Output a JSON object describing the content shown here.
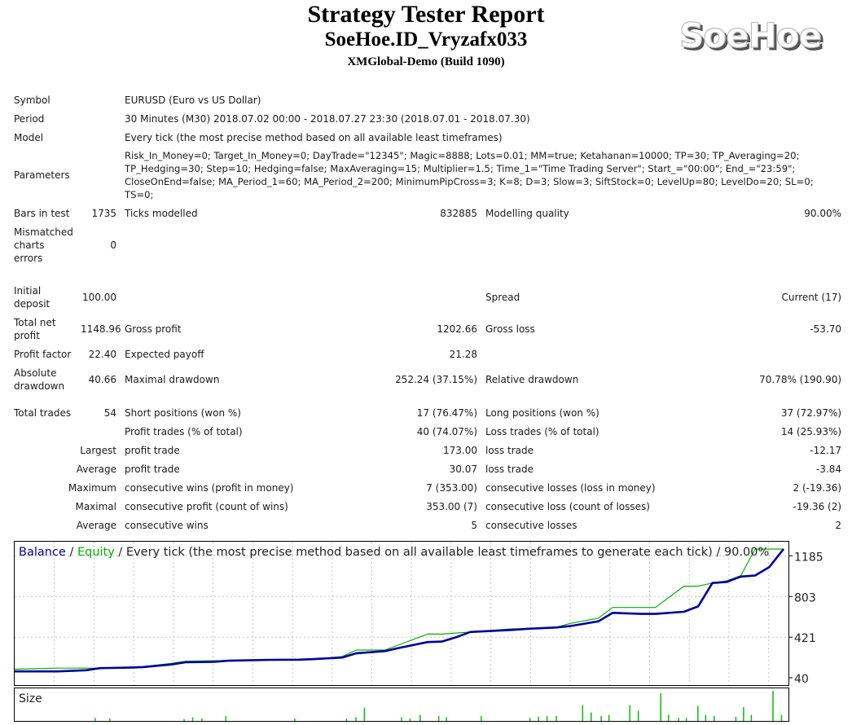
{
  "header": {
    "title": "Strategy Tester Report",
    "expert": "SoeHoe.ID_Vryzafx033",
    "server": "XMGlobal-Demo (Build 1090)",
    "logo_text": "SoeHoe"
  },
  "settings": {
    "symbol_label": "Symbol",
    "symbol_value": "EURUSD (Euro vs US Dollar)",
    "period_label": "Period",
    "period_value": "30 Minutes (M30) 2018.07.02 00:00 - 2018.07.27 23:30 (2018.07.01 - 2018.07.30)",
    "model_label": "Model",
    "model_value": "Every tick (the most precise method based on all available least timeframes)",
    "parameters_label": "Parameters",
    "parameters_value": "Risk_In_Money=0; Target_In_Money=0; DayTrade=\"12345\"; Magic=8888; Lots=0.01; MM=true; Ketahanan=10000; TP=30; TP_Averaging=20; TP_Hedging=30; Step=10; Hedging=false; MaxAveraging=15; Multiplier=1.5; Time_1=\"Time Trading Server\"; Start_=\"00:00\"; End_=\"23:59\"; CloseOnEnd=false; MA_Period_1=60; MA_Period_2=200; MinimumPipCross=3; K=8; D=3; Slow=3; SiftStock=0; LevelUp=80; LevelDo=20; SL=0; TS=0;"
  },
  "stats": {
    "bars_label": "Bars in test",
    "bars_value": "1735",
    "ticks_label": "Ticks modelled",
    "ticks_value": "832885",
    "quality_label": "Modelling quality",
    "quality_value": "90.00%",
    "mismatch_label": "Mismatched charts errors",
    "mismatch_value": "0",
    "deposit_label": "Initial deposit",
    "deposit_value": "100.00",
    "spread_label": "Spread",
    "spread_value": "Current (17)",
    "net_label": "Total net profit",
    "net_value": "1148.96",
    "gross_profit_label": "Gross profit",
    "gross_profit_value": "1202.66",
    "gross_loss_label": "Gross loss",
    "gross_loss_value": "-53.70",
    "pf_label": "Profit factor",
    "pf_value": "22.40",
    "payoff_label": "Expected payoff",
    "payoff_value": "21.28",
    "abs_dd_label": "Absolute drawdown",
    "abs_dd_value": "40.66",
    "max_dd_label": "Maximal drawdown",
    "max_dd_value": "252.24 (37.15%)",
    "rel_dd_label": "Relative drawdown",
    "rel_dd_value": "70.78% (190.90)",
    "trades_label": "Total trades",
    "trades_value": "54",
    "short_label": "Short positions (won %)",
    "short_value": "17 (76.47%)",
    "long_label": "Long positions (won %)",
    "long_value": "37 (72.97%)",
    "profit_trades_label": "Profit trades (% of total)",
    "profit_trades_value": "40 (74.07%)",
    "loss_trades_label": "Loss trades (% of total)",
    "loss_trades_value": "14 (25.93%)",
    "largest_label": "Largest",
    "largest_profit_label": "profit trade",
    "largest_profit_value": "173.00",
    "largest_loss_label": "loss trade",
    "largest_loss_value": "-12.17",
    "average_label": "Average",
    "average_profit_label": "profit trade",
    "average_profit_value": "30.07",
    "average_loss_label": "loss trade",
    "average_loss_value": "-3.84",
    "maximum_label": "Maximum",
    "max_wins_label": "consecutive wins (profit in money)",
    "max_wins_value": "7 (353.00)",
    "max_losses_label": "consecutive losses (loss in money)",
    "max_losses_value": "2 (-19.36)",
    "maximal_label": "Maximal",
    "maximal_profit_label": "consecutive profit (count of wins)",
    "maximal_profit_value": "353.00 (7)",
    "maximal_loss_label": "consecutive loss (count of losses)",
    "maximal_loss_value": "-19.36 (2)",
    "average2_label": "Average",
    "avg_wins_label": "consecutive wins",
    "avg_wins_value": "5",
    "avg_losses_label": "consecutive losses",
    "avg_losses_value": "2"
  },
  "chart_header": {
    "balance": "Balance",
    "sep1": " / ",
    "equity": "Equity",
    "sep2": " / ",
    "rest": "Every tick (the most precise method based on all available least timeframes to generate each tick) / 90.00%"
  },
  "chart_data": {
    "type": "line",
    "ylabel": "",
    "y_ticks": [
      40,
      421,
      803,
      1185
    ],
    "x": [
      0,
      3,
      5,
      6,
      8,
      9,
      11,
      12,
      14,
      15,
      18,
      20,
      21,
      23,
      24,
      26,
      27,
      29,
      30,
      31,
      32,
      35,
      36,
      38,
      39,
      41,
      42,
      44,
      45,
      47,
      48,
      49,
      50,
      51,
      52,
      53,
      54
    ],
    "series": [
      {
        "name": "Balance",
        "color": "#00009c",
        "values": [
          100,
          100,
          110,
          130,
          135,
          140,
          165,
          185,
          190,
          200,
          208,
          210,
          215,
          230,
          270,
          290,
          320,
          375,
          380,
          420,
          470,
          490,
          500,
          512,
          525,
          570,
          650,
          640,
          640,
          660,
          710,
          930,
          940,
          990,
          1000,
          1080,
          1249
        ]
      },
      {
        "name": "Equity",
        "color": "#00b000",
        "values": [
          120,
          130,
          130,
          130,
          140,
          145,
          175,
          195,
          200,
          200,
          208,
          210,
          210,
          240,
          300,
          300,
          350,
          450,
          450,
          460,
          470,
          500,
          500,
          512,
          550,
          600,
          700,
          700,
          700,
          900,
          900,
          930,
          950,
          1000,
          1249,
          1249,
          1249
        ]
      }
    ],
    "size_label": "Size",
    "size_bars": [
      [
        0.104,
        0.1
      ],
      [
        0.123,
        0.08
      ],
      [
        0.219,
        0.06
      ],
      [
        0.23,
        0.12
      ],
      [
        0.242,
        0.08
      ],
      [
        0.273,
        0.16
      ],
      [
        0.362,
        0.08
      ],
      [
        0.429,
        0.08
      ],
      [
        0.441,
        0.12
      ],
      [
        0.452,
        0.44
      ],
      [
        0.5,
        0.12
      ],
      [
        0.511,
        0.08
      ],
      [
        0.524,
        0.2
      ],
      [
        0.548,
        0.16
      ],
      [
        0.558,
        0.12
      ],
      [
        0.603,
        0.16
      ],
      [
        0.666,
        0.1
      ],
      [
        0.677,
        0.14
      ],
      [
        0.688,
        0.16
      ],
      [
        0.7,
        0.16
      ],
      [
        0.734,
        0.52
      ],
      [
        0.745,
        0.28
      ],
      [
        0.758,
        0.16
      ],
      [
        0.768,
        0.2
      ],
      [
        0.795,
        0.52
      ],
      [
        0.806,
        0.34
      ],
      [
        0.835,
        0.92
      ],
      [
        0.845,
        0.2
      ],
      [
        0.858,
        0.1
      ],
      [
        0.868,
        0.1
      ],
      [
        0.883,
        0.5
      ],
      [
        0.893,
        0.2
      ],
      [
        0.904,
        0.16
      ],
      [
        0.932,
        0.14
      ],
      [
        0.942,
        0.46
      ],
      [
        0.952,
        0.2
      ],
      [
        0.98,
        1.0
      ],
      [
        0.991,
        0.2
      ]
    ]
  }
}
